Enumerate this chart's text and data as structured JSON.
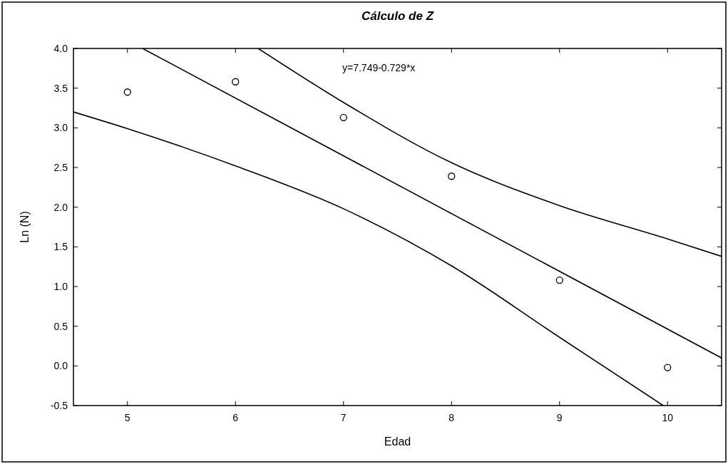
{
  "chart_data": {
    "type": "scatter",
    "title": "Cálculo de Z",
    "xlabel": "Edad",
    "ylabel": "Ln (N)",
    "annotations": [
      "y=7.749-0.729*x"
    ],
    "xlim": [
      4.5,
      10.5
    ],
    "ylim": [
      -0.5,
      4.0
    ],
    "xticks": [
      5,
      6,
      7,
      8,
      9,
      10
    ],
    "yticks": [
      {
        "value": -0.5,
        "label": "-0.5"
      },
      {
        "value": 0,
        "label": "0.0"
      },
      {
        "value": 0.5,
        "label": "0.5"
      },
      {
        "value": 1,
        "label": "1.0"
      },
      {
        "value": 1.5,
        "label": "1.5"
      },
      {
        "value": 2,
        "label": "2.0"
      },
      {
        "value": 2.5,
        "label": "2.5"
      },
      {
        "value": 3,
        "label": "3.0"
      },
      {
        "value": 3.5,
        "label": "3.5"
      },
      {
        "value": 4,
        "label": "4.0"
      }
    ],
    "grid": false,
    "series": [
      {
        "marker": "circle",
        "color": "#000000",
        "x": [
          5,
          6,
          7,
          8,
          9,
          10
        ],
        "values": [
          3.45,
          3.58,
          3.13,
          2.39,
          1.08,
          -0.02
        ]
      },
      {
        "type": "line",
        "marker": "none",
        "line_style": "solid",
        "color": "#000000",
        "x": [
          5.14,
          10.5
        ],
        "values": [
          4.0,
          0.1
        ]
      },
      {
        "type": "line",
        "marker": "none",
        "line_style": "solid",
        "color": "#000000",
        "x": [
          6.21,
          7,
          8,
          9,
          10,
          10.5
        ],
        "values": [
          4.0,
          3.32,
          2.56,
          2.02,
          1.6,
          1.38
        ]
      },
      {
        "type": "line",
        "marker": "none",
        "line_style": "solid",
        "color": "#000000",
        "x": [
          4.5,
          5,
          6,
          7,
          8,
          9,
          9.96
        ],
        "values": [
          3.2,
          2.99,
          2.52,
          1.98,
          1.26,
          0.36,
          -0.5
        ]
      }
    ]
  }
}
